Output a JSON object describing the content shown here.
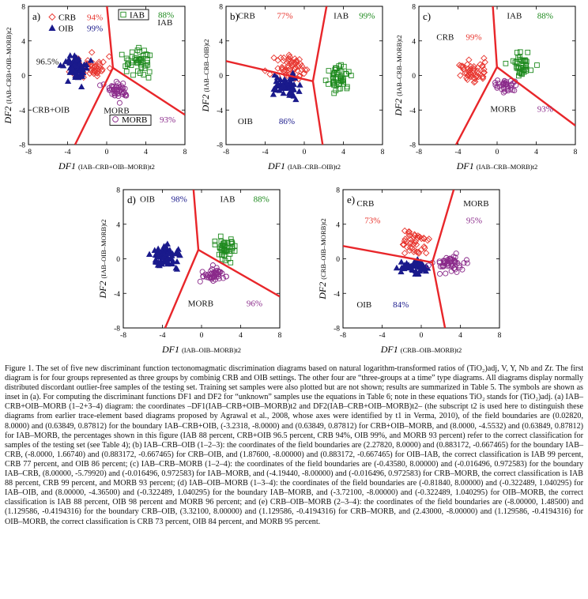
{
  "figure": {
    "caption": "Figure 1. The set of five new discriminant function tectonomagmatic discrimination diagrams based on natural logarithm-transformed ratios of (TiO₂)adj, V, Y, Nb and Zr. The first diagram is for four groups represented as three groups by combinig CRB and OIB settings. The other four are “three-groups at a time” type diagrams. All diagrams display normally distributed discordant outlier-free samples of the testing set. Training set samples were also plotted but are not shown; results are summarized in Table 5. The symbols are shown as inset in (a). For computing the discriminant functions DF1 and DF2 for “unknown” samples use the equations in Table 6; note in these equations TiO₂ stands for (TiO₂)adj. (a) IAB–CRB+OIB–MORB (1–2+3–4) diagram: the coordinates –DF1(IAB–CRB+OIB–MORB)t2 and DF2(IAB–CRB+OIB–MORB)t2– (the subscript t2 is used here to distinguish these diagrams from earlier trace-element based diagrams proposed by Agrawal et al., 2008, whose axes were identified by t1 in Verma, 2010), of the field boundaries are (0.02820, 8.0000) and (0.63849, 0.87812) for the boundary IAB–CRB+OIB, (-3.2318, -8.0000) and (0.63849, 0.87812) for CRB+OIB–MORB, and (8.0000, -4.5532) and (0.63849, 0.87812) for IAB–MORB, the percentages shown in this figure (IAB 88 percent, CRB+OIB 96.5 percent, CRB 94%, OIB 99%, and MORB 93 percent) refer to the correct classification for samples of the testing set (see Table 4); (b) IAB–CRB–OIB (1–2–3): the coordinates of the field boundaries are (2.27820, 8.0000) and (0.883172, -0.667465) for the boundary IAB–CRB, (-8.0000, 1.66740) and (0.883172, -0.667465) for CRB–OIB, and (1.87600, -8.00000) and (0.883172, -0.667465) for OIB–IAB, the correct classification is IAB 99 percent, CRB 77 percent, and OIB 86 percent; (c) IAB–CRB–MORB (1–2–4): the coordinates of the field boundaries are (-0.43580, 8.00000) and (-0.016496, 0.972583) for the boundary IAB–CRB, (8.00000, -5.79920) and (-0.016496, 0.972583) for IAB–MORB, and (-4.19440, -8.00000) and (-0.016496, 0.972583) for CRB–MORB, the correct classification is IAB 88 percent, CRB 99 percent, and MORB 93 percent; (d) IAB–OIB–MORB (1–3–4): the coordinates of the field boundaries are (-0.81840, 8.00000) and (-0.322489, 1.040295) for IAB–OIB, and (8.00000, -4.36500) and (-0.322489, 1.040295) for the boundary IAB–MORB, and (-3.72100, -8.00000) and (-0.322489, 1.040295) for OIB–MORB, the correct classification is IAB 88 percent, OIB 98 percent and MORB 96 percent; and (e) CRB–OIB–MORB (2–3–4): the coordinates of the field boundaries are (-8.00000, 1.48500) and (1.129586, -0.4194316) for the boundary CRB–OIB, (3.32100, 8.00000) and (1.129586, -0.4194316) for CRB–MORB, and (2.43000, -8.00000) and (1.129586, -0.4194316) for OIB–MORB, the correct classification is CRB 73 percent, OIB 84 percent, and MORB 95 percent."
  },
  "chart_data": [
    {
      "panel": "a)",
      "type": "scatter",
      "xlabel_main": "DF1",
      "xlabel_sub": "(IAB–CRB+OIB–MORB)t2",
      "ylabel_main": "DF2",
      "ylabel_sub": "(IAB–CRB+OIB–MORB)t2",
      "xlim": [
        -8,
        8
      ],
      "ylim": [
        -8,
        8
      ],
      "xticks": [
        "-8",
        "-4",
        "0",
        "4",
        "8"
      ],
      "yticks": [
        "-8",
        "-4",
        "0",
        "4",
        "8"
      ],
      "boundaries": [
        [
          [
            0.0282,
            8
          ],
          [
            0.63849,
            0.87812
          ]
        ],
        [
          [
            -3.2318,
            -8
          ],
          [
            0.63849,
            0.87812
          ]
        ],
        [
          [
            8,
            -4.5532
          ],
          [
            0.63849,
            0.87812
          ]
        ]
      ],
      "legend": [
        {
          "symbol": "diamond",
          "label": "CRB",
          "pct": "94%",
          "color": "#e8352e"
        },
        {
          "symbol": "triangle",
          "label": "OIB",
          "pct": "99%",
          "color": "#1a1a8c"
        },
        {
          "symbol": "square",
          "label": "IAB",
          "pct": "88%",
          "color": "#1e8a1e"
        },
        {
          "symbol": "circle",
          "label": "MORB",
          "pct": "93%",
          "color": "#8a2a8a"
        }
      ],
      "labels": [
        {
          "text": "IAB",
          "x": 5.2,
          "y": 5.8,
          "color": "#111"
        },
        {
          "text": "96.5%",
          "x": -7.2,
          "y": 1.3,
          "color": "#111"
        },
        {
          "text": "CRB+OIB",
          "x": -7.6,
          "y": -4.3,
          "color": "#111"
        },
        {
          "text": "MORB",
          "x": -0.3,
          "y": -4.4,
          "color": "#111"
        }
      ],
      "groups": [
        {
          "symbol": "diamond",
          "color": "#e8352e",
          "center": [
            -1.7,
            0.9
          ],
          "spread": [
            1.3,
            1.0
          ],
          "n": 55,
          "seed": 11
        },
        {
          "symbol": "triangle",
          "color": "#1a1a8c",
          "center": [
            -3.0,
            0.9
          ],
          "spread": [
            1.0,
            1.1
          ],
          "n": 60,
          "seed": 12
        },
        {
          "symbol": "square",
          "color": "#1e8a1e",
          "center": [
            3.2,
            1.6
          ],
          "spread": [
            1.1,
            1.2
          ],
          "n": 45,
          "seed": 13
        },
        {
          "symbol": "circle",
          "color": "#8a2a8a",
          "center": [
            1.4,
            -1.7
          ],
          "spread": [
            1.1,
            0.7
          ],
          "n": 45,
          "seed": 14
        }
      ]
    },
    {
      "panel": "b)",
      "type": "scatter",
      "xlabel_main": "DF1",
      "xlabel_sub": "(IAB–CRB–OIB)t2",
      "ylabel_main": "DF2",
      "ylabel_sub": "(IAB–CRB–OIB)t2",
      "xlim": [
        -8,
        8
      ],
      "ylim": [
        -8,
        8
      ],
      "xticks": [
        "-8",
        "-4",
        "0",
        "4",
        "8"
      ],
      "yticks": [
        "-8",
        "-4",
        "0",
        "4",
        "8"
      ],
      "boundaries": [
        [
          [
            2.2782,
            8
          ],
          [
            0.883172,
            -0.667465
          ]
        ],
        [
          [
            -8,
            1.6674
          ],
          [
            0.883172,
            -0.667465
          ]
        ],
        [
          [
            1.876,
            -8
          ],
          [
            0.883172,
            -0.667465
          ]
        ]
      ],
      "legend": [],
      "labels": [
        {
          "text": "CRB",
          "x": -6.8,
          "y": 6.6,
          "color": "#111"
        },
        {
          "text": "77%",
          "x": -2.8,
          "y": 6.6,
          "color": "#e8352e"
        },
        {
          "text": "IAB",
          "x": 3.0,
          "y": 6.6,
          "color": "#111"
        },
        {
          "text": "99%",
          "x": 5.6,
          "y": 6.6,
          "color": "#1e8a1e"
        },
        {
          "text": "OIB",
          "x": -6.8,
          "y": -5.6,
          "color": "#111"
        },
        {
          "text": "86%",
          "x": -2.6,
          "y": -5.6,
          "color": "#1a1a8c"
        }
      ],
      "groups": [
        {
          "symbol": "diamond",
          "color": "#e8352e",
          "center": [
            -1.2,
            0.8
          ],
          "spread": [
            1.4,
            1.1
          ],
          "n": 55,
          "seed": 21
        },
        {
          "symbol": "triangle",
          "color": "#1a1a8c",
          "center": [
            -1.9,
            -1.2
          ],
          "spread": [
            1.0,
            0.9
          ],
          "n": 55,
          "seed": 22
        },
        {
          "symbol": "square",
          "color": "#1e8a1e",
          "center": [
            3.6,
            -0.4
          ],
          "spread": [
            0.8,
            1.0
          ],
          "n": 50,
          "seed": 23
        }
      ]
    },
    {
      "panel": "c)",
      "type": "scatter",
      "xlabel_main": "DF1",
      "xlabel_sub": "(IAB–CRB–MORB)t2",
      "ylabel_main": "DF2",
      "ylabel_sub": "(IAB–CRB–MORB)t2",
      "xlim": [
        -8,
        8
      ],
      "ylim": [
        -8,
        8
      ],
      "xticks": [
        "-8",
        "-4",
        "0",
        "4",
        "8"
      ],
      "yticks": [
        "-8",
        "-4",
        "0",
        "4",
        "8"
      ],
      "boundaries": [
        [
          [
            -0.4358,
            8
          ],
          [
            -0.016496,
            0.972583
          ]
        ],
        [
          [
            8,
            -5.7992
          ],
          [
            -0.016496,
            0.972583
          ]
        ],
        [
          [
            -4.1944,
            -8
          ],
          [
            -0.016496,
            0.972583
          ]
        ]
      ],
      "legend": [],
      "labels": [
        {
          "text": "CRB",
          "x": -6.2,
          "y": 4.1,
          "color": "#111"
        },
        {
          "text": "99%",
          "x": -3.2,
          "y": 4.1,
          "color": "#e8352e"
        },
        {
          "text": "IAB",
          "x": 1.0,
          "y": 6.6,
          "color": "#111"
        },
        {
          "text": "88%",
          "x": 4.1,
          "y": 6.6,
          "color": "#1e8a1e"
        },
        {
          "text": "MORB",
          "x": -0.7,
          "y": -4.2,
          "color": "#111"
        },
        {
          "text": "93%",
          "x": 4.1,
          "y": -4.2,
          "color": "#8a2a8a"
        }
      ],
      "groups": [
        {
          "symbol": "diamond",
          "color": "#e8352e",
          "center": [
            -2.6,
            0.4
          ],
          "spread": [
            1.2,
            1.0
          ],
          "n": 50,
          "seed": 31
        },
        {
          "symbol": "square",
          "color": "#1e8a1e",
          "center": [
            2.5,
            1.4
          ],
          "spread": [
            0.9,
            1.0
          ],
          "n": 40,
          "seed": 32
        },
        {
          "symbol": "circle",
          "color": "#8a2a8a",
          "center": [
            0.8,
            -1.3
          ],
          "spread": [
            0.8,
            0.6
          ],
          "n": 35,
          "seed": 33
        }
      ]
    },
    {
      "panel": "d)",
      "type": "scatter",
      "xlabel_main": "DF1",
      "xlabel_sub": "(IAB–OIB–MORB)t2",
      "ylabel_main": "DF2",
      "ylabel_sub": "(IAB–OIB–MORB)t2",
      "xlim": [
        -8,
        8
      ],
      "ylim": [
        -8,
        8
      ],
      "xticks": [
        "-8",
        "-4",
        "0",
        "4",
        "8"
      ],
      "yticks": [
        "-8",
        "-4",
        "0",
        "4",
        "8"
      ],
      "boundaries": [
        [
          [
            -0.8184,
            8
          ],
          [
            -0.322489,
            1.040295
          ]
        ],
        [
          [
            8,
            -4.365
          ],
          [
            -0.322489,
            1.040295
          ]
        ],
        [
          [
            -3.721,
            -8
          ],
          [
            -0.322489,
            1.040295
          ]
        ]
      ],
      "legend": [],
      "labels": [
        {
          "text": "OIB",
          "x": -6.3,
          "y": 6.6,
          "color": "#111"
        },
        {
          "text": "98%",
          "x": -3.1,
          "y": 6.6,
          "color": "#1a1a8c"
        },
        {
          "text": "IAB",
          "x": 1.9,
          "y": 6.6,
          "color": "#111"
        },
        {
          "text": "88%",
          "x": 5.3,
          "y": 6.6,
          "color": "#1e8a1e"
        },
        {
          "text": "MORB",
          "x": -1.4,
          "y": -5.5,
          "color": "#111"
        },
        {
          "text": "96%",
          "x": 4.6,
          "y": -5.5,
          "color": "#8a2a8a"
        }
      ],
      "groups": [
        {
          "symbol": "triangle",
          "color": "#1a1a8c",
          "center": [
            -3.5,
            0.3
          ],
          "spread": [
            1.2,
            0.9
          ],
          "n": 70,
          "seed": 41
        },
        {
          "symbol": "square",
          "color": "#1e8a1e",
          "center": [
            2.3,
            1.3
          ],
          "spread": [
            0.9,
            1.0
          ],
          "n": 45,
          "seed": 42
        },
        {
          "symbol": "circle",
          "color": "#8a2a8a",
          "center": [
            1.0,
            -1.8
          ],
          "spread": [
            1.1,
            0.7
          ],
          "n": 45,
          "seed": 43
        }
      ]
    },
    {
      "panel": "e)",
      "type": "scatter",
      "xlabel_main": "DF1",
      "xlabel_sub": "(CRB–OIB–MORB)t2",
      "ylabel_main": "DF2",
      "ylabel_sub": "(CRB–OIB–MORB)t2",
      "xlim": [
        -8,
        8
      ],
      "ylim": [
        -8,
        8
      ],
      "xticks": [
        "-8",
        "-4",
        "0",
        "4",
        "8"
      ],
      "yticks": [
        "-8",
        "-4",
        "0",
        "4",
        "8"
      ],
      "boundaries": [
        [
          [
            -8,
            1.485
          ],
          [
            1.129586,
            -0.4194316
          ]
        ],
        [
          [
            3.321,
            8
          ],
          [
            1.129586,
            -0.4194316
          ]
        ],
        [
          [
            2.43,
            -8
          ],
          [
            1.129586,
            -0.4194316
          ]
        ]
      ],
      "legend": [],
      "labels": [
        {
          "text": "CRB",
          "x": -6.6,
          "y": 6.1,
          "color": "#111"
        },
        {
          "text": "73%",
          "x": -5.8,
          "y": 4.1,
          "color": "#e8352e"
        },
        {
          "text": "MORB",
          "x": 4.3,
          "y": 6.1,
          "color": "#111"
        },
        {
          "text": "95%",
          "x": 4.6,
          "y": 4.1,
          "color": "#8a2a8a"
        },
        {
          "text": "OIB",
          "x": -6.6,
          "y": -5.6,
          "color": "#111"
        },
        {
          "text": "84%",
          "x": -2.9,
          "y": -5.6,
          "color": "#1a1a8c"
        }
      ],
      "groups": [
        {
          "symbol": "diamond",
          "color": "#e8352e",
          "center": [
            -0.8,
            1.8
          ],
          "spread": [
            1.3,
            1.2
          ],
          "n": 45,
          "seed": 51
        },
        {
          "symbol": "triangle",
          "color": "#1a1a8c",
          "center": [
            -0.7,
            -1.0
          ],
          "spread": [
            1.1,
            0.6
          ],
          "n": 50,
          "seed": 52
        },
        {
          "symbol": "circle",
          "color": "#8a2a8a",
          "center": [
            3.0,
            -0.5
          ],
          "spread": [
            1.3,
            0.8
          ],
          "n": 55,
          "seed": 53
        }
      ]
    }
  ]
}
